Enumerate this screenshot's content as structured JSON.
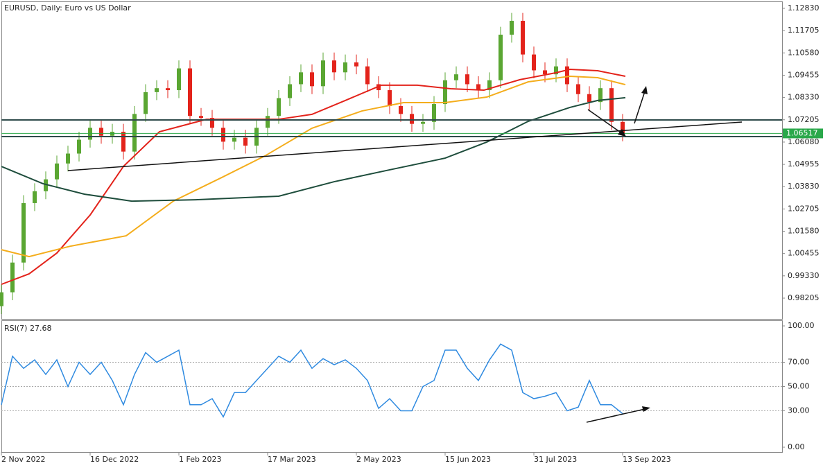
{
  "chart_data": [
    {
      "type": "candlestick",
      "title": "EURUSD, Daily:  Euro vs US Dollar",
      "up_color": "#5aa632",
      "down_color": "#e3231b",
      "x": [
        0,
        4,
        8,
        12,
        16,
        20,
        24,
        28,
        32,
        36,
        40,
        44,
        48,
        52,
        56,
        60,
        64,
        68,
        72,
        76,
        80,
        84,
        88,
        92,
        96,
        100,
        104,
        108,
        112,
        116,
        120,
        124,
        128,
        132,
        136,
        140,
        144,
        148,
        152,
        156,
        160,
        164,
        168,
        172,
        176,
        180,
        184,
        188,
        192,
        196,
        200,
        204,
        208,
        212,
        216,
        220,
        224
      ],
      "open": [
        0.978,
        0.985,
        1.0,
        1.03,
        1.036,
        1.042,
        1.05,
        1.055,
        1.062,
        1.068,
        1.064,
        1.066,
        1.056,
        1.075,
        1.086,
        1.088,
        1.087,
        1.098,
        1.074,
        1.073,
        1.068,
        1.061,
        1.063,
        1.059,
        1.068,
        1.074,
        1.083,
        1.09,
        1.096,
        1.089,
        1.102,
        1.096,
        1.101,
        1.099,
        1.09,
        1.087,
        1.079,
        1.075,
        1.07,
        1.071,
        1.08,
        1.092,
        1.095,
        1.09,
        1.087,
        1.092,
        1.115,
        1.122,
        1.105,
        1.097,
        1.095,
        1.099,
        1.09,
        1.085,
        1.081,
        1.088,
        1.071
      ],
      "high": [
        0.989,
        1.004,
        1.034,
        1.04,
        1.046,
        1.054,
        1.059,
        1.066,
        1.072,
        1.072,
        1.07,
        1.07,
        1.079,
        1.09,
        1.092,
        1.092,
        1.102,
        1.102,
        1.078,
        1.077,
        1.072,
        1.067,
        1.067,
        1.072,
        1.078,
        1.087,
        1.094,
        1.1,
        1.1,
        1.106,
        1.106,
        1.105,
        1.105,
        1.103,
        1.094,
        1.091,
        1.083,
        1.079,
        1.075,
        1.084,
        1.096,
        1.099,
        1.099,
        1.094,
        1.096,
        1.119,
        1.126,
        1.126,
        1.109,
        1.101,
        1.103,
        1.103,
        1.094,
        1.089,
        1.092,
        1.092,
        1.075
      ],
      "low": [
        0.974,
        0.981,
        0.996,
        1.026,
        1.032,
        1.038,
        1.046,
        1.051,
        1.058,
        1.06,
        1.06,
        1.052,
        1.052,
        1.071,
        1.082,
        1.083,
        1.083,
        1.07,
        1.069,
        1.064,
        1.057,
        1.057,
        1.055,
        1.055,
        1.064,
        1.07,
        1.079,
        1.086,
        1.085,
        1.085,
        1.092,
        1.092,
        1.095,
        1.086,
        1.083,
        1.075,
        1.071,
        1.066,
        1.066,
        1.067,
        1.076,
        1.088,
        1.086,
        1.083,
        1.083,
        1.088,
        1.111,
        1.101,
        1.093,
        1.091,
        1.091,
        1.086,
        1.081,
        1.077,
        1.077,
        1.067,
        1.0612
      ],
      "close": [
        0.985,
        1.0,
        1.03,
        1.036,
        1.042,
        1.05,
        1.055,
        1.062,
        1.068,
        1.064,
        1.066,
        1.056,
        1.075,
        1.086,
        1.088,
        1.087,
        1.098,
        1.074,
        1.073,
        1.068,
        1.061,
        1.063,
        1.059,
        1.068,
        1.074,
        1.083,
        1.09,
        1.096,
        1.089,
        1.102,
        1.096,
        1.101,
        1.099,
        1.09,
        1.087,
        1.079,
        1.075,
        1.07,
        1.071,
        1.08,
        1.092,
        1.095,
        1.09,
        1.087,
        1.092,
        1.115,
        1.122,
        1.105,
        1.097,
        1.095,
        1.099,
        1.09,
        1.085,
        1.081,
        1.088,
        1.071,
        1.0652
      ],
      "lines": [
        {
          "color": "#e3231b",
          "x": [
            0,
            10,
            20,
            32,
            44,
            57,
            74,
            100,
            112,
            124,
            137,
            150,
            162,
            174,
            187,
            200,
            205,
            215,
            225
          ],
          "values": [
            0.989,
            0.9943,
            1.0048,
            1.024,
            1.0485,
            1.066,
            1.0723,
            1.0723,
            1.0748,
            1.0818,
            1.0895,
            1.0895,
            1.0877,
            1.087,
            1.0923,
            1.0958,
            1.0975,
            1.0968,
            1.094
          ]
        },
        {
          "color": "#f4ad1c",
          "x": [
            0,
            10,
            25,
            45,
            62,
            80,
            95,
            112,
            130,
            145,
            160,
            175,
            190,
            205,
            215,
            225
          ],
          "values": [
            1.0065,
            1.003,
            1.0083,
            1.0135,
            1.031,
            1.0433,
            1.0538,
            1.0678,
            1.0765,
            1.0807,
            1.0807,
            1.0835,
            1.0912,
            1.094,
            1.0933,
            1.0898
          ]
        },
        {
          "color": "#1e4d3c",
          "x": [
            0,
            15,
            30,
            47,
            70,
            100,
            120,
            140,
            160,
            175,
            190,
            205,
            215,
            225
          ],
          "values": [
            1.0485,
            1.0398,
            1.0345,
            1.031,
            1.0317,
            1.0335,
            1.0408,
            1.0468,
            1.0527,
            1.0608,
            1.0713,
            1.0783,
            1.0818,
            1.0832
          ]
        }
      ],
      "last_price": 1.06517,
      "last_color": "#2aa84a",
      "xlim": [
        0,
        281.5
      ],
      "ylim": [
        0.97155,
        1.1318
      ],
      "yticks": [
        {
          "value": 1.1283,
          "label": "1.12830"
        },
        {
          "value": 1.11705,
          "label": "1.11705"
        },
        {
          "value": 1.1058,
          "label": "1.10580"
        },
        {
          "value": 1.09455,
          "label": "1.09455"
        },
        {
          "value": 1.0833,
          "label": "1.08330"
        },
        {
          "value": 1.07205,
          "label": "1.07205"
        },
        {
          "value": 1.0608,
          "label": "1.06080"
        },
        {
          "value": 1.04955,
          "label": "1.04955"
        },
        {
          "value": 1.0383,
          "label": "1.03830"
        },
        {
          "value": 1.02705,
          "label": "1.02705"
        },
        {
          "value": 1.0158,
          "label": "1.01580"
        },
        {
          "value": 1.00455,
          "label": "1.00455"
        },
        {
          "value": 0.9933,
          "label": "0.99330"
        },
        {
          "value": 0.98205,
          "label": "0.98205"
        }
      ],
      "xticks": [
        {
          "value": 0,
          "label": "2 Nov 2022"
        },
        {
          "value": 32,
          "label": "16 Dec 2022"
        },
        {
          "value": 64,
          "label": "1 Feb 2023"
        },
        {
          "value": 96,
          "label": "17 Mar 2023"
        },
        {
          "value": 128,
          "label": "2 May 2023"
        },
        {
          "value": 160,
          "label": "15 Jun 2023"
        },
        {
          "value": 192,
          "label": "31 Jul 2023"
        },
        {
          "value": 224,
          "label": "13 Sep 2023"
        }
      ]
    },
    {
      "type": "line",
      "title": "RSI(7) 27.68",
      "color": "#2f8ae0",
      "x": [
        0,
        4,
        8,
        12,
        16,
        20,
        24,
        28,
        32,
        36,
        40,
        44,
        48,
        52,
        56,
        60,
        64,
        68,
        72,
        76,
        80,
        84,
        88,
        92,
        96,
        100,
        104,
        108,
        112,
        116,
        120,
        124,
        128,
        132,
        136,
        140,
        144,
        148,
        152,
        156,
        160,
        164,
        168,
        172,
        176,
        180,
        184,
        188,
        192,
        196,
        200,
        204,
        208,
        212,
        216,
        220,
        224
      ],
      "values": [
        35,
        75,
        65,
        72,
        60,
        72,
        50,
        70,
        60,
        70,
        55,
        35,
        60,
        78,
        70,
        75,
        80,
        35,
        35,
        40,
        25,
        45,
        45,
        55,
        65,
        75,
        70,
        80,
        65,
        73,
        68,
        72,
        65,
        55,
        32,
        40,
        30,
        30,
        50,
        55,
        80,
        80,
        65,
        55,
        72,
        85,
        80,
        45,
        40,
        42,
        45,
        30,
        33,
        55,
        35,
        35,
        27.68
      ],
      "ylim": [
        -4,
        104.6
      ],
      "yticks": [
        {
          "value": 100,
          "label": "100.00"
        },
        {
          "value": 70,
          "label": "70.00"
        },
        {
          "value": 50,
          "label": "50.00"
        },
        {
          "value": 30,
          "label": "30.00"
        },
        {
          "value": 0,
          "label": "0.00"
        }
      ],
      "levels": [
        70,
        50,
        30
      ]
    }
  ]
}
